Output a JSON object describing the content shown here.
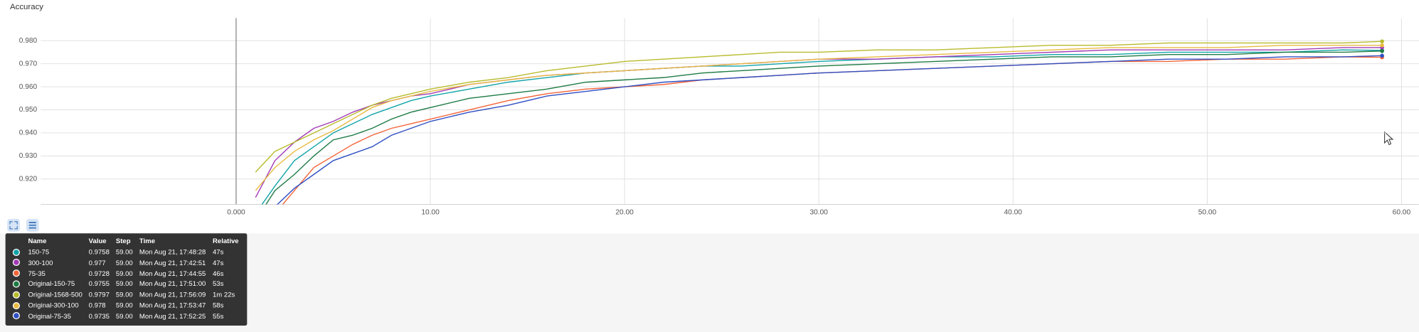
{
  "chart_data": {
    "type": "line",
    "title": "Accuracy",
    "x": [
      1,
      2,
      3,
      4,
      5,
      6,
      7,
      8,
      9,
      10,
      12,
      14,
      16,
      18,
      20,
      22,
      24,
      26,
      28,
      30,
      33,
      36,
      39,
      42,
      45,
      48,
      51,
      54,
      57,
      59
    ],
    "xlim": [
      -10.06,
      60.9
    ],
    "xticks": [
      {
        "value": 0,
        "label": "0.000"
      },
      {
        "value": 10,
        "label": "10.00"
      },
      {
        "value": 20,
        "label": "20.00"
      },
      {
        "value": 30,
        "label": "30.00"
      },
      {
        "value": 40,
        "label": "40.00"
      },
      {
        "value": 50,
        "label": "50.00"
      },
      {
        "value": 60,
        "label": "60.00"
      }
    ],
    "ylim": [
      0.909,
      0.9898
    ],
    "yticks": [
      {
        "value": 0.92,
        "label": "0.920"
      },
      {
        "value": 0.93,
        "label": "0.930"
      },
      {
        "value": 0.94,
        "label": "0.940"
      },
      {
        "value": 0.95,
        "label": "0.950"
      },
      {
        "value": 0.96,
        "label": "0.960"
      },
      {
        "value": 0.97,
        "label": "0.970"
      },
      {
        "value": 0.98,
        "label": "0.980"
      }
    ],
    "grid": true,
    "series": [
      {
        "name": "150-75",
        "color": "#12a4a8",
        "values": [
          0.905,
          0.917,
          0.928,
          0.934,
          0.94,
          0.944,
          0.948,
          0.951,
          0.954,
          0.956,
          0.959,
          0.962,
          0.964,
          0.966,
          0.967,
          0.968,
          0.969,
          0.969,
          0.97,
          0.971,
          0.972,
          0.973,
          0.973,
          0.974,
          0.974,
          0.975,
          0.975,
          0.975,
          0.976,
          0.9758
        ]
      },
      {
        "name": "300-100",
        "color": "#a23bb5",
        "values": [
          0.912,
          0.928,
          0.936,
          0.942,
          0.945,
          0.949,
          0.952,
          0.954,
          0.956,
          0.957,
          0.961,
          0.963,
          0.965,
          0.966,
          0.967,
          0.968,
          0.969,
          0.97,
          0.971,
          0.972,
          0.972,
          0.973,
          0.974,
          0.975,
          0.976,
          0.976,
          0.976,
          0.976,
          0.977,
          0.977
        ]
      },
      {
        "name": "75-35",
        "color": "#f2643a",
        "values": [
          0.895,
          0.905,
          0.915,
          0.925,
          0.93,
          0.935,
          0.939,
          0.942,
          0.944,
          0.946,
          0.95,
          0.954,
          0.957,
          0.959,
          0.96,
          0.961,
          0.963,
          0.964,
          0.965,
          0.966,
          0.967,
          0.968,
          0.969,
          0.97,
          0.971,
          0.971,
          0.972,
          0.972,
          0.973,
          0.9728
        ]
      },
      {
        "name": "Original-150-75",
        "color": "#1e7b45",
        "values": [
          0.902,
          0.915,
          0.922,
          0.93,
          0.937,
          0.939,
          0.942,
          0.946,
          0.949,
          0.951,
          0.955,
          0.957,
          0.959,
          0.962,
          0.963,
          0.964,
          0.966,
          0.967,
          0.968,
          0.969,
          0.97,
          0.971,
          0.972,
          0.973,
          0.973,
          0.974,
          0.974,
          0.975,
          0.975,
          0.9755
        ]
      },
      {
        "name": "Original-1568-500",
        "color": "#b8bb2c",
        "values": [
          0.923,
          0.932,
          0.936,
          0.94,
          0.944,
          0.948,
          0.952,
          0.955,
          0.957,
          0.959,
          0.962,
          0.964,
          0.967,
          0.969,
          0.971,
          0.972,
          0.973,
          0.974,
          0.975,
          0.975,
          0.976,
          0.976,
          0.977,
          0.978,
          0.978,
          0.979,
          0.979,
          0.979,
          0.979,
          0.9797
        ]
      },
      {
        "name": "Original-300-100",
        "color": "#e8bb42",
        "values": [
          0.915,
          0.925,
          0.932,
          0.937,
          0.941,
          0.946,
          0.951,
          0.954,
          0.956,
          0.958,
          0.961,
          0.963,
          0.965,
          0.966,
          0.967,
          0.968,
          0.969,
          0.97,
          0.971,
          0.972,
          0.973,
          0.974,
          0.975,
          0.976,
          0.977,
          0.977,
          0.977,
          0.978,
          0.978,
          0.978
        ]
      },
      {
        "name": "Original-75-35",
        "color": "#2f4fc4",
        "values": [
          0.89,
          0.908,
          0.916,
          0.922,
          0.928,
          0.931,
          0.934,
          0.939,
          0.942,
          0.945,
          0.949,
          0.952,
          0.956,
          0.958,
          0.96,
          0.962,
          0.963,
          0.964,
          0.965,
          0.966,
          0.967,
          0.968,
          0.969,
          0.97,
          0.971,
          0.972,
          0.972,
          0.973,
          0.973,
          0.9735
        ]
      }
    ]
  },
  "tooltip": {
    "columns": [
      "Name",
      "Value",
      "Step",
      "Time",
      "Relative"
    ],
    "rows": [
      {
        "step": "59.00",
        "time": "Mon Aug 21, 17:48:28",
        "relative": "47s"
      },
      {
        "step": "59.00",
        "time": "Mon Aug 21, 17:42:51",
        "relative": "47s"
      },
      {
        "step": "59.00",
        "time": "Mon Aug 21, 17:44:55",
        "relative": "46s"
      },
      {
        "step": "59.00",
        "time": "Mon Aug 21, 17:51:00",
        "relative": "53s"
      },
      {
        "step": "59.00",
        "time": "Mon Aug 21, 17:56:09",
        "relative": "1m 22s"
      },
      {
        "step": "59.00",
        "time": "Mon Aug 21, 17:53:47",
        "relative": "58s"
      },
      {
        "step": "59.00",
        "time": "Mon Aug 21, 17:52:25",
        "relative": "55s"
      }
    ]
  }
}
